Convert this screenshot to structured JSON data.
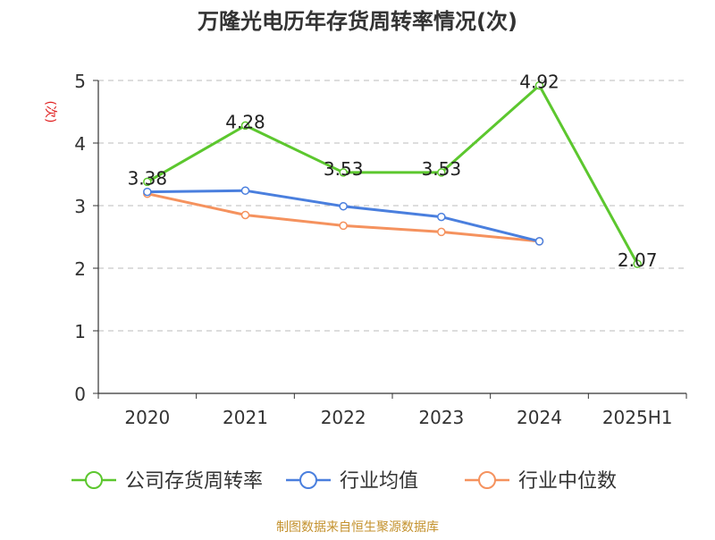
{
  "chart_data": {
    "type": "line",
    "title": "万隆光电历年存货周转率情况(次)",
    "ylabel": "(次)",
    "categories": [
      "2020",
      "2021",
      "2022",
      "2023",
      "2024",
      "2025H1"
    ],
    "ylim": [
      0,
      5
    ],
    "yticks": [
      0,
      1,
      2,
      3,
      4,
      5
    ],
    "grid": true,
    "legend_position": "bottom",
    "series": [
      {
        "name": "公司存货周转率",
        "color": "#5cc72e",
        "values": [
          3.38,
          4.28,
          3.53,
          3.53,
          4.92,
          2.07
        ],
        "labels": [
          "3.38",
          "4.28",
          "3.53",
          "3.53",
          "4.92",
          "2.07"
        ]
      },
      {
        "name": "行业均值",
        "color": "#4a7fde",
        "values": [
          3.22,
          3.24,
          2.99,
          2.82,
          2.43,
          null
        ]
      },
      {
        "name": "行业中位数",
        "color": "#f5925e",
        "values": [
          3.19,
          2.85,
          2.68,
          2.58,
          2.43,
          null
        ]
      }
    ]
  },
  "footer": {
    "source": "制图数据来自恒生聚源数据库"
  }
}
